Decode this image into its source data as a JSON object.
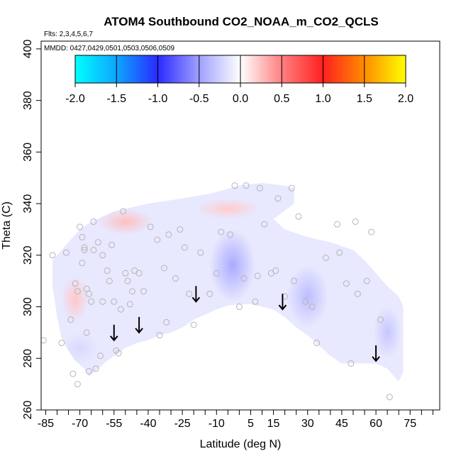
{
  "chart_data": {
    "type": "heatmap",
    "title": "ATOM4 Southbound CO2_NOAA_m_CO2_QCLS",
    "flights_text": "Flts: 2,3,4,5,6,7",
    "dates_text": "MMDD: 0427,0429,0501,0503,0506,0509",
    "xlabel": "Latitude (deg N)",
    "ylabel": "Theta (C)",
    "xlim": [
      -87,
      88
    ],
    "ylim": [
      260,
      403
    ],
    "x_ticks": [
      -85,
      -80,
      -75,
      -70,
      -65,
      -60,
      -55,
      -50,
      -45,
      -40,
      -35,
      -30,
      -25,
      -20,
      -15,
      -10,
      -5,
      0,
      5,
      10,
      15,
      20,
      25,
      30,
      35,
      40,
      45,
      50,
      55,
      60,
      65,
      70,
      75,
      80,
      85
    ],
    "x_tick_labels": [
      {
        "value": -85,
        "label": "-85"
      },
      {
        "value": -70,
        "label": "-70"
      },
      {
        "value": -55,
        "label": "-55"
      },
      {
        "value": -40,
        "label": "-40"
      },
      {
        "value": -25,
        "label": "-25"
      },
      {
        "value": -10,
        "label": "-10"
      },
      {
        "value": 5,
        "label": "5"
      },
      {
        "value": 15,
        "label": "15"
      },
      {
        "value": 30,
        "label": "30"
      },
      {
        "value": 45,
        "label": "45"
      },
      {
        "value": 60,
        "label": "60"
      },
      {
        "value": 75,
        "label": "75"
      }
    ],
    "y_ticks": [
      {
        "value": 260,
        "label": "260"
      },
      {
        "value": 280,
        "label": "280"
      },
      {
        "value": 300,
        "label": "300"
      },
      {
        "value": 320,
        "label": "320"
      },
      {
        "value": 340,
        "label": "340"
      },
      {
        "value": 360,
        "label": "360"
      },
      {
        "value": 380,
        "label": "380"
      },
      {
        "value": 400,
        "label": "400"
      }
    ],
    "colorbar": {
      "range": [
        -2.0,
        2.0
      ],
      "stops": [
        {
          "v": -2.0,
          "color": "#00ffff"
        },
        {
          "v": -1.5,
          "color": "#0ea5ff"
        },
        {
          "v": -1.0,
          "color": "#2a2aff"
        },
        {
          "v": -0.5,
          "color": "#a0a0ff"
        },
        {
          "v": 0.0,
          "color": "#ffffff"
        },
        {
          "v": 0.5,
          "color": "#ff8080"
        },
        {
          "v": 1.0,
          "color": "#ff2020"
        },
        {
          "v": 1.5,
          "color": "#ff8c00"
        },
        {
          "v": 2.0,
          "color": "#ffff00"
        }
      ],
      "ticks": [
        {
          "value": -2.0,
          "label": "-2.0"
        },
        {
          "value": -1.5,
          "label": "-1.5"
        },
        {
          "value": -1.0,
          "label": "-1.0"
        },
        {
          "value": -0.5,
          "label": "-0.5"
        },
        {
          "value": 0.0,
          "label": "0.0"
        },
        {
          "value": 0.5,
          "label": "0.5"
        },
        {
          "value": 1.0,
          "label": "1.0"
        },
        {
          "value": 1.5,
          "label": "1.5"
        },
        {
          "value": 2.0,
          "label": "2.0"
        }
      ]
    },
    "domain_top": [
      [
        -82,
        318
      ],
      [
        -75,
        325
      ],
      [
        -70,
        330
      ],
      [
        -65,
        333
      ],
      [
        -55,
        337
      ],
      [
        -40,
        340
      ],
      [
        -25,
        342
      ],
      [
        -12,
        344
      ],
      [
        0,
        347
      ],
      [
        10,
        348
      ],
      [
        20,
        347
      ],
      [
        24,
        346
      ],
      [
        24,
        340
      ],
      [
        15,
        334
      ],
      [
        20,
        330
      ],
      [
        30,
        327
      ],
      [
        40,
        325
      ],
      [
        50,
        322
      ],
      [
        55,
        318
      ],
      [
        60,
        313
      ],
      [
        65,
        308
      ],
      [
        70,
        304
      ],
      [
        72,
        300
      ]
    ],
    "domain_bottom": [
      [
        -82,
        308
      ],
      [
        -80,
        296
      ],
      [
        -78,
        288
      ],
      [
        -75,
        283
      ],
      [
        -72,
        279
      ],
      [
        -68,
        276
      ],
      [
        -66,
        273
      ],
      [
        -62,
        276
      ],
      [
        -58,
        279
      ],
      [
        -55,
        281
      ],
      [
        -50,
        284
      ],
      [
        -45,
        286
      ],
      [
        -40,
        287
      ],
      [
        -35,
        289
      ],
      [
        -30,
        290
      ],
      [
        -25,
        292
      ],
      [
        -20,
        295
      ],
      [
        -15,
        297
      ],
      [
        -10,
        299
      ],
      [
        -5,
        300.5
      ],
      [
        0,
        301
      ],
      [
        5,
        301
      ],
      [
        10,
        300
      ],
      [
        15,
        299
      ],
      [
        20,
        296
      ],
      [
        25,
        292
      ],
      [
        30,
        289
      ],
      [
        35,
        285
      ],
      [
        40,
        281
      ],
      [
        45,
        278
      ],
      [
        50,
        278
      ],
      [
        55,
        278
      ],
      [
        60,
        278
      ],
      [
        65,
        276
      ],
      [
        68,
        273
      ],
      [
        70,
        271
      ],
      [
        72,
        275
      ],
      [
        72,
        300
      ]
    ],
    "anomaly_blobs": [
      {
        "x": -3,
        "y": 316,
        "rx": 10,
        "ry": 14,
        "value": -0.45
      },
      {
        "x": 30,
        "y": 304,
        "rx": 9,
        "ry": 12,
        "value": -0.35
      },
      {
        "x": 65,
        "y": 290,
        "rx": 6,
        "ry": 10,
        "value": -0.3
      },
      {
        "x": -70,
        "y": 284,
        "rx": 8,
        "ry": 6,
        "value": -0.2
      },
      {
        "x": -50,
        "y": 333,
        "rx": 12,
        "ry": 5,
        "value": 0.25
      },
      {
        "x": -5,
        "y": 338,
        "rx": 14,
        "ry": 4,
        "value": 0.2
      },
      {
        "x": -72,
        "y": 303,
        "rx": 6,
        "ry": 9,
        "value": 0.22
      }
    ],
    "points": [
      [
        -86,
        287
      ],
      [
        -82,
        320
      ],
      [
        -78,
        286
      ],
      [
        -76,
        321
      ],
      [
        -74,
        295
      ],
      [
        -73,
        274
      ],
      [
        -72,
        309
      ],
      [
        -71,
        270
      ],
      [
        -71,
        306
      ],
      [
        -70,
        331
      ],
      [
        -69,
        317
      ],
      [
        -69,
        327
      ],
      [
        -68,
        323
      ],
      [
        -68,
        322
      ],
      [
        -67,
        307
      ],
      [
        -67,
        290
      ],
      [
        -66,
        305
      ],
      [
        -66,
        275
      ],
      [
        -65,
        302
      ],
      [
        -64,
        333
      ],
      [
        -64,
        322
      ],
      [
        -63,
        276
      ],
      [
        -62,
        325
      ],
      [
        -61,
        281
      ],
      [
        -60,
        302
      ],
      [
        -60,
        320
      ],
      [
        -58,
        314
      ],
      [
        -57,
        310
      ],
      [
        -56,
        324
      ],
      [
        -55,
        302
      ],
      [
        -54,
        283
      ],
      [
        -53,
        282
      ],
      [
        -52,
        299
      ],
      [
        -51,
        337
      ],
      [
        -50,
        313
      ],
      [
        -49,
        310
      ],
      [
        -48,
        301
      ],
      [
        -47,
        306
      ],
      [
        -46,
        314
      ],
      [
        -44,
        313
      ],
      [
        -42,
        306
      ],
      [
        -39,
        331
      ],
      [
        -36,
        326
      ],
      [
        -35,
        289
      ],
      [
        -33,
        315
      ],
      [
        -32,
        294
      ],
      [
        -31,
        328
      ],
      [
        -28,
        311
      ],
      [
        -26,
        330
      ],
      [
        -24,
        323
      ],
      [
        -22,
        305
      ],
      [
        -20,
        293
      ],
      [
        -17,
        321
      ],
      [
        -13,
        305
      ],
      [
        -10,
        313
      ],
      [
        -8,
        329
      ],
      [
        -4,
        328
      ],
      [
        -2,
        347
      ],
      [
        0,
        300
      ],
      [
        2,
        311
      ],
      [
        3,
        347
      ],
      [
        7,
        302
      ],
      [
        8,
        312
      ],
      [
        9,
        346
      ],
      [
        11,
        332
      ],
      [
        14,
        313
      ],
      [
        16,
        314
      ],
      [
        17,
        342
      ],
      [
        20,
        304
      ],
      [
        23,
        346
      ],
      [
        24,
        310
      ],
      [
        26,
        335
      ],
      [
        29,
        302
      ],
      [
        32,
        300
      ],
      [
        34,
        286
      ],
      [
        38,
        319
      ],
      [
        43,
        332
      ],
      [
        44,
        321
      ],
      [
        47,
        309
      ],
      [
        49,
        278
      ],
      [
        51,
        333
      ],
      [
        52,
        305
      ],
      [
        56,
        310
      ],
      [
        58,
        329
      ],
      [
        62,
        295
      ],
      [
        66,
        265
      ]
    ],
    "arrows": [
      [
        -55,
        287
      ],
      [
        -44,
        290
      ],
      [
        -19,
        302
      ],
      [
        19,
        299
      ],
      [
        60,
        279
      ]
    ]
  }
}
